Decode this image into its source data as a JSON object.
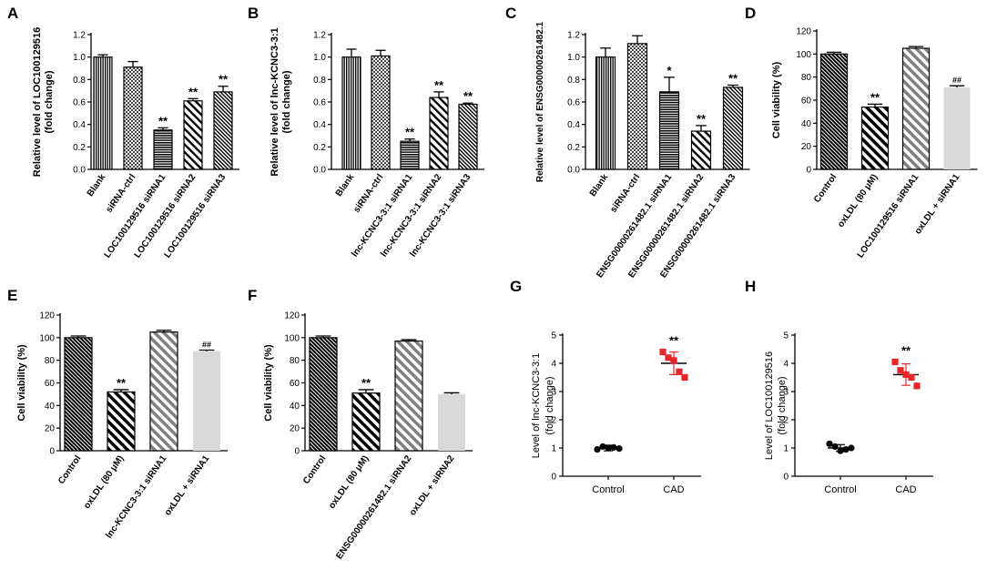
{
  "figure": {
    "colors": {
      "red": "#e8262a",
      "light_gray": "#d9d9d9",
      "black": "#000000"
    }
  },
  "chart_data": [
    {
      "panel": "A",
      "type": "bar",
      "ylabel": "Relative level of LOC100129516",
      "ylabel2": "(fold change)",
      "ylim": [
        0,
        1.2
      ],
      "yticks": [
        "0.0",
        "0.2",
        "0.4",
        "0.6",
        "0.8",
        "1.0",
        "1.2"
      ],
      "categories": [
        "Blank",
        "siRNA-ctrl",
        "LOC100129516 siRNA1",
        "LOC100129516 siRNA2",
        "LOC100129516 siRNA3"
      ],
      "values": [
        1.0,
        0.91,
        0.35,
        0.61,
        0.69
      ],
      "errors": [
        0.02,
        0.05,
        0.02,
        0.02,
        0.05
      ],
      "annotations": [
        "",
        "",
        "**",
        "**",
        "**"
      ],
      "patterns": [
        "vlines",
        "checker",
        "hlines",
        "diagl",
        "diagr"
      ]
    },
    {
      "panel": "B",
      "type": "bar",
      "ylabel": "Relative level of lnc-KCNC3-3:1",
      "ylabel2": "(fold change)",
      "ylim": [
        0,
        1.2
      ],
      "yticks": [
        "0.0",
        "0.2",
        "0.4",
        "0.6",
        "0.8",
        "1.0",
        "1.2"
      ],
      "categories": [
        "Blank",
        "siRNA-ctrl",
        "lnc-KCNC3-3:1 siRNA1",
        "lnc-KCNC3-3:1 siRNA2",
        "lnc-KCNC3-3:1 siRNA3"
      ],
      "values": [
        1.0,
        1.01,
        0.25,
        0.64,
        0.58
      ],
      "errors": [
        0.07,
        0.05,
        0.02,
        0.05,
        0.01
      ],
      "annotations": [
        "",
        "",
        "**",
        "**",
        "**"
      ],
      "patterns": [
        "vlines",
        "checker",
        "hlines",
        "diagl",
        "diagr"
      ]
    },
    {
      "panel": "C",
      "type": "bar",
      "ylabel": "Relative level of ENSG00000261482.1",
      "ylabel2": "",
      "ylim": [
        0,
        1.2
      ],
      "yticks": [
        "0.0",
        "0.2",
        "0.4",
        "0.6",
        "0.8",
        "1.0",
        "1.2"
      ],
      "categories": [
        "Blank",
        "siRNA-ctrl",
        "ENSG00000261482.1 siRNA1",
        "ENSG00000261482.1 siRNA2",
        "ENSG00000261482.1 siRNA3"
      ],
      "values": [
        1.0,
        1.12,
        0.69,
        0.34,
        0.73
      ],
      "errors": [
        0.08,
        0.07,
        0.13,
        0.05,
        0.02
      ],
      "annotations": [
        "",
        "",
        "*",
        "**",
        "**"
      ],
      "patterns": [
        "vlines",
        "checker",
        "hlines",
        "diagl",
        "diagr"
      ]
    },
    {
      "panel": "D",
      "type": "bar",
      "ylabel": "Cell viability (%)",
      "ylabel2": "",
      "ylim": [
        0,
        120
      ],
      "yticks": [
        "0",
        "20",
        "40",
        "60",
        "80",
        "100",
        "120"
      ],
      "categories": [
        "Control",
        "oxLDL (80 μM)",
        "LOC100129516 siRNA1",
        "oxLDL + siRNA1"
      ],
      "values": [
        100,
        54,
        105,
        71
      ],
      "errors": [
        1.5,
        2.5,
        1.5,
        1.5
      ],
      "annotations": [
        "",
        "**",
        "",
        "##"
      ],
      "patterns": [
        "dark",
        "blackdiag",
        "graydiag",
        "light"
      ]
    },
    {
      "panel": "E",
      "type": "bar",
      "ylabel": "Cell viability (%)",
      "ylabel2": "",
      "ylim": [
        0,
        120
      ],
      "yticks": [
        "0",
        "20",
        "40",
        "60",
        "80",
        "100",
        "120"
      ],
      "categories": [
        "Control",
        "oxLDL (80 μM)",
        "lnc-KCNC3-3:1 siRNA1",
        "oxLDL + siRNA1"
      ],
      "values": [
        100,
        52,
        105,
        88
      ],
      "errors": [
        1.5,
        2.0,
        1.5,
        1.0
      ],
      "annotations": [
        "",
        "**",
        "",
        "##"
      ],
      "patterns": [
        "dark",
        "blackdiag",
        "graydiag",
        "light"
      ]
    },
    {
      "panel": "F",
      "type": "bar",
      "ylabel": "Cell viability (%)",
      "ylabel2": "",
      "ylim": [
        0,
        120
      ],
      "yticks": [
        "0",
        "20",
        "40",
        "60",
        "80",
        "100",
        "120"
      ],
      "categories": [
        "Control",
        "oxLDL (80 μM)",
        "ENSG00000261482.1 siRNA2",
        "oxLDL + siRNA2"
      ],
      "values": [
        100,
        51,
        97,
        50
      ],
      "errors": [
        1.5,
        3.0,
        1.2,
        1.2
      ],
      "annotations": [
        "",
        "**",
        "",
        ""
      ],
      "patterns": [
        "dark",
        "blackdiag",
        "graydiag",
        "light"
      ]
    },
    {
      "panel": "G",
      "type": "scatter",
      "ylabel": "Level of lnc-KCNC3-3:1",
      "ylabel2": "(fold change)",
      "ylim": [
        0,
        5
      ],
      "yticks": [
        "0",
        "1",
        "2",
        "3",
        "4",
        "5"
      ],
      "categories": [
        "Control",
        "CAD"
      ],
      "groups": [
        {
          "name": "Control",
          "points": [
            0.95,
            1.05,
            1.0,
            1.02,
            0.98
          ],
          "mean": 1.0,
          "sd": 0.1,
          "marker": "circle",
          "color": "#000000"
        },
        {
          "name": "CAD",
          "points": [
            4.4,
            4.2,
            4.1,
            3.7,
            3.5
          ],
          "mean": 4.0,
          "sd": 0.4,
          "marker": "square",
          "color": "#e8262a"
        }
      ],
      "annotation": "**"
    },
    {
      "panel": "H",
      "type": "scatter",
      "ylabel": "Level of LOC100129516",
      "ylabel2": "(fold change)",
      "ylim": [
        0,
        5
      ],
      "yticks": [
        "0",
        "1",
        "2",
        "3",
        "4",
        "5"
      ],
      "categories": [
        "Control",
        "CAD"
      ],
      "groups": [
        {
          "name": "Control",
          "points": [
            1.15,
            1.05,
            0.9,
            0.95,
            1.0
          ],
          "mean": 1.0,
          "sd": 0.12,
          "marker": "circle",
          "color": "#000000"
        },
        {
          "name": "CAD",
          "points": [
            4.05,
            3.75,
            3.6,
            3.5,
            3.2
          ],
          "mean": 3.6,
          "sd": 0.38,
          "marker": "square",
          "color": "#e8262a"
        }
      ],
      "annotation": "**"
    }
  ]
}
